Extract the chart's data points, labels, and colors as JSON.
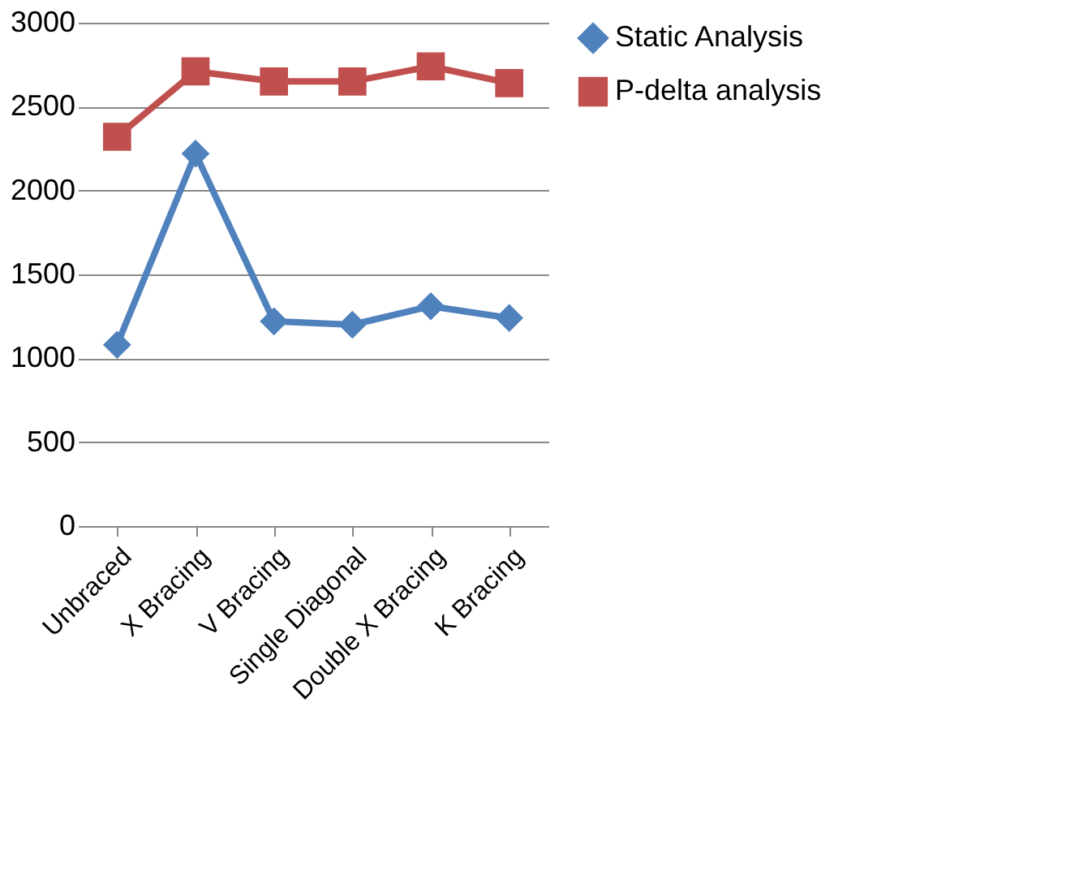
{
  "chart_data": {
    "type": "line",
    "categories": [
      "Unbraced",
      "X Bracing",
      "V Bracing",
      "Single Diagonal",
      "Double X Bracing",
      "K Bracing"
    ],
    "series": [
      {
        "name": "Static Analysis",
        "color": "#4f81bd",
        "marker": "diamond",
        "values": [
          1080,
          2220,
          1220,
          1200,
          1310,
          1240
        ]
      },
      {
        "name": "P-delta analysis",
        "color": "#c0504d",
        "marker": "square",
        "values": [
          2320,
          2710,
          2650,
          2650,
          2740,
          2640
        ]
      }
    ],
    "ylim": [
      0,
      3000
    ],
    "yticks": [
      0,
      500,
      1000,
      1500,
      2000,
      2500,
      3000
    ],
    "grid": "y",
    "legend": "right",
    "line_style": "solid"
  }
}
